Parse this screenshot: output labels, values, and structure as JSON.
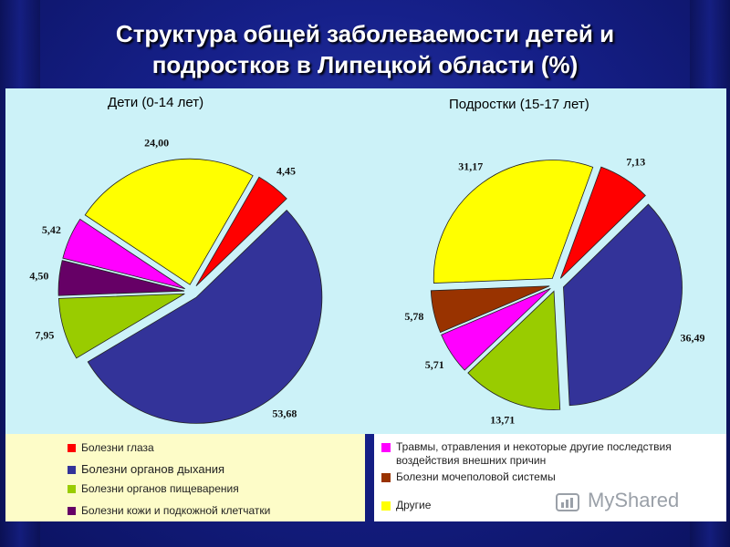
{
  "title": "Структура общей заболеваемости детей и подростков в Липецкой области (%)",
  "chart_data": [
    {
      "type": "pie",
      "title": "Дети (0-14 лет)",
      "slices": [
        {
          "label": "Болезни глаза",
          "value": 4.45,
          "display": "4,45",
          "color": "#ff0000"
        },
        {
          "label": "Болезни органов дыхания",
          "value": 53.68,
          "display": "53,68",
          "color": "#333399"
        },
        {
          "label": "Болезни органов пищеварения",
          "value": 7.95,
          "display": "7,95",
          "color": "#99cc00"
        },
        {
          "label": "Болезни кожи и подкожной клетчатки",
          "value": 4.5,
          "display": "4,50",
          "color": "#660066"
        },
        {
          "label": "Травмы, отравления и некоторые другие последствия воздействия внешних причин",
          "value": 5.42,
          "display": "5,42",
          "color": "#ff00ff"
        },
        {
          "label": "Другие",
          "value": 24.0,
          "display": "24,00",
          "color": "#ffff00"
        }
      ]
    },
    {
      "type": "pie",
      "title": "Подростки (15-17 лет)",
      "slices": [
        {
          "label": "Болезни глаза",
          "value": 7.13,
          "display": "7,13",
          "color": "#ff0000"
        },
        {
          "label": "Болезни органов дыхания",
          "value": 36.49,
          "display": "36,49",
          "color": "#333399"
        },
        {
          "label": "Болезни органов пищеварения",
          "value": 13.71,
          "display": "13,71",
          "color": "#99cc00"
        },
        {
          "label": "Травмы, отравления и некоторые другие последствия воздействия внешних причин",
          "value": 5.71,
          "display": "5,71",
          "color": "#ff00ff"
        },
        {
          "label": "Болезни мочеполовой системы",
          "value": 5.78,
          "display": "5,78",
          "color": "#993300"
        },
        {
          "label": "Другие",
          "value": 31.17,
          "display": "31,17",
          "color": "#ffff00"
        }
      ]
    }
  ],
  "legend_left": [
    {
      "label": "Болезни глаза",
      "color": "#ff0000"
    },
    {
      "label": "Болезни органов дыхания",
      "color": "#333399"
    },
    {
      "label": "Болезни органов пищеварения",
      "color": "#99cc00"
    },
    {
      "label": "Болезни кожи и подкожной клетчатки",
      "color": "#660066"
    }
  ],
  "legend_right": [
    {
      "label": "Травмы, отравления и некоторые другие последствия",
      "label2": "воздействия внешних причин",
      "color": "#ff00ff"
    },
    {
      "label": "Болезни мочеполовой системы",
      "color": "#993300"
    },
    {
      "label": "Другие",
      "color": "#ffff00"
    }
  ],
  "watermark": "MyShared"
}
